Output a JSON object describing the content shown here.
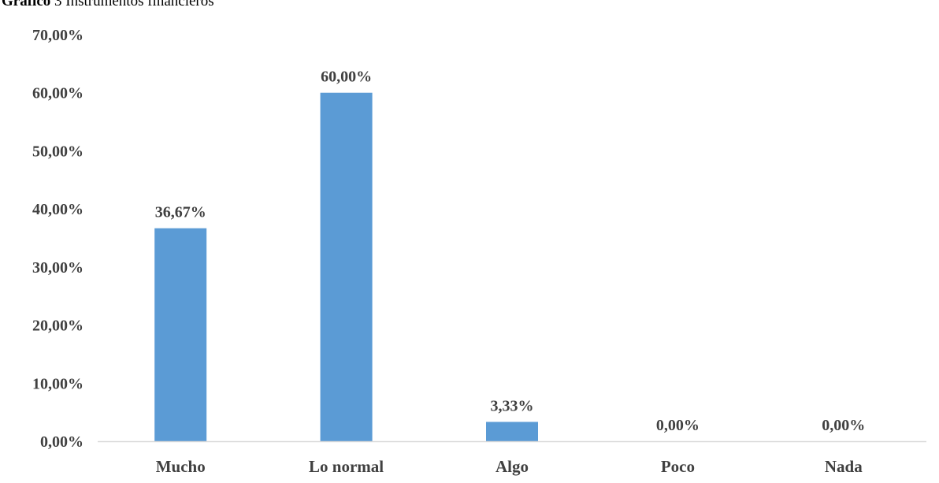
{
  "caption": {
    "prefix": "Gráfico",
    "text": "3 Instrumentos financieros"
  },
  "colors": {
    "bar": "#5B9BD5",
    "axis": "#D9D9D9",
    "text": "#404040"
  },
  "chart_data": {
    "type": "bar",
    "categories": [
      "Mucho",
      "Lo normal",
      "Algo",
      "Poco",
      "Nada"
    ],
    "values": [
      36.67,
      60.0,
      3.33,
      0.0,
      0.0
    ],
    "data_labels": [
      "36,67%",
      "60,00%",
      "3,33%",
      "0,00%",
      "0,00%"
    ],
    "ylim": [
      0,
      70
    ],
    "y_ticks": [
      0,
      10,
      20,
      30,
      40,
      50,
      60,
      70
    ],
    "y_tick_labels": [
      "0,00%",
      "10,00%",
      "20,00%",
      "30,00%",
      "40,00%",
      "50,00%",
      "60,00%",
      "70,00%"
    ],
    "grid": false,
    "legend": "none"
  }
}
